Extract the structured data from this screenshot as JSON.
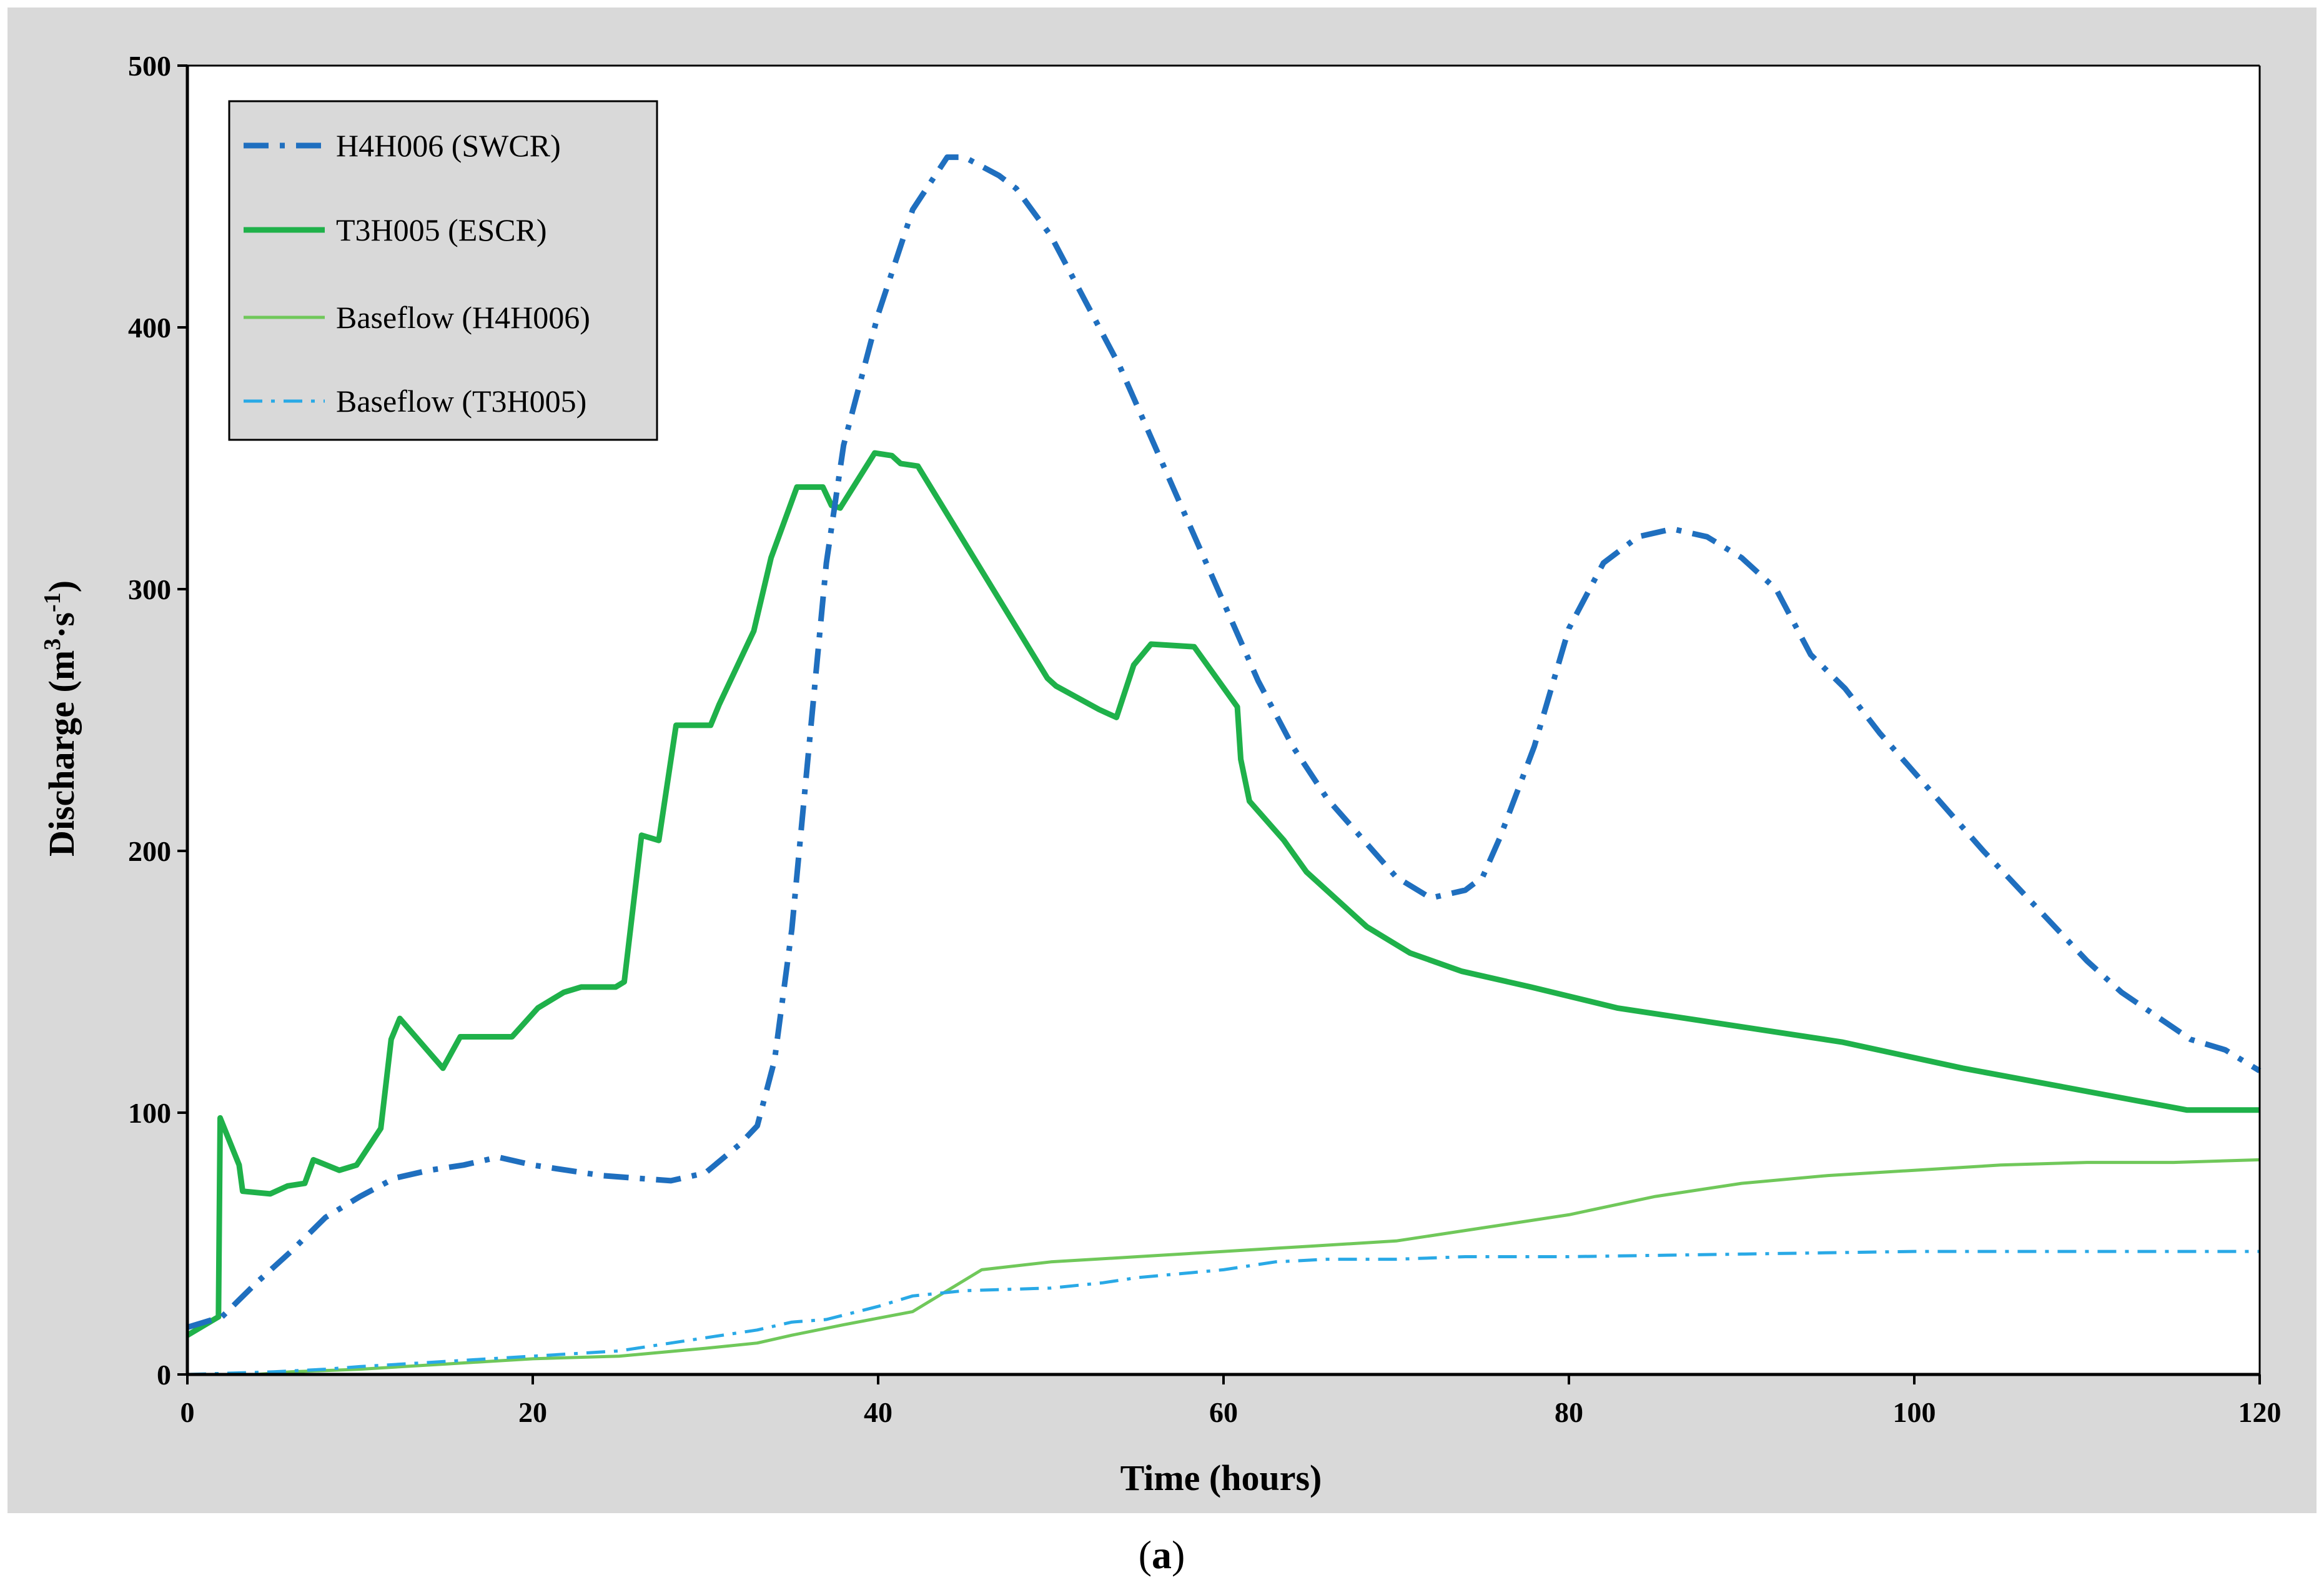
{
  "chart_data": {
    "type": "line",
    "title": "",
    "xlabel": "Time (hours)",
    "ylabel_main": "Discharge (m",
    "ylabel_sup1": "3",
    "ylabel_mid": "·s",
    "ylabel_sup2": "-1",
    "ylabel_end": ")",
    "xlim": [
      0,
      120
    ],
    "ylim": [
      0,
      500
    ],
    "x_ticks": [
      "0",
      "20",
      "40",
      "60",
      "80",
      "100",
      "120"
    ],
    "y_ticks": [
      "0",
      "100",
      "200",
      "300",
      "400",
      "500"
    ],
    "caption_open": "(",
    "caption_letter": "a",
    "caption_close": ")",
    "legend_position": "top-left",
    "series": [
      {
        "name": "H4H006 (SWCR)",
        "color": "#1f6fbf",
        "style": "dash-dot-thick",
        "points": [
          [
            0,
            18
          ],
          [
            2,
            22
          ],
          [
            4,
            35
          ],
          [
            6,
            47
          ],
          [
            8,
            60
          ],
          [
            10,
            68
          ],
          [
            12,
            75
          ],
          [
            14,
            78
          ],
          [
            16,
            80
          ],
          [
            18,
            83
          ],
          [
            20,
            80
          ],
          [
            22,
            78
          ],
          [
            24,
            76
          ],
          [
            26,
            75
          ],
          [
            28,
            74
          ],
          [
            30,
            77
          ],
          [
            32,
            88
          ],
          [
            33,
            95
          ],
          [
            34,
            120
          ],
          [
            35,
            170
          ],
          [
            36,
            240
          ],
          [
            37,
            310
          ],
          [
            38,
            355
          ],
          [
            39,
            380
          ],
          [
            40,
            405
          ],
          [
            42,
            445
          ],
          [
            44,
            465
          ],
          [
            45,
            465
          ],
          [
            47,
            458
          ],
          [
            48,
            453
          ],
          [
            50,
            435
          ],
          [
            52,
            410
          ],
          [
            54,
            385
          ],
          [
            56,
            355
          ],
          [
            58,
            325
          ],
          [
            60,
            295
          ],
          [
            62,
            265
          ],
          [
            64,
            240
          ],
          [
            66,
            220
          ],
          [
            68,
            205
          ],
          [
            70,
            190
          ],
          [
            72,
            182
          ],
          [
            74,
            185
          ],
          [
            75,
            190
          ],
          [
            76,
            205
          ],
          [
            78,
            240
          ],
          [
            80,
            285
          ],
          [
            82,
            310
          ],
          [
            84,
            320
          ],
          [
            86,
            323
          ],
          [
            88,
            320
          ],
          [
            90,
            312
          ],
          [
            92,
            300
          ],
          [
            94,
            275
          ],
          [
            96,
            262
          ],
          [
            98,
            245
          ],
          [
            100,
            230
          ],
          [
            102,
            215
          ],
          [
            104,
            200
          ],
          [
            106,
            186
          ],
          [
            108,
            172
          ],
          [
            110,
            158
          ],
          [
            112,
            146
          ],
          [
            114,
            137
          ],
          [
            116,
            128
          ],
          [
            118,
            124
          ],
          [
            120,
            116
          ]
        ]
      },
      {
        "name": "T3H005 (ESCR)",
        "color": "#1fb14a",
        "style": "solid-thick",
        "points": [
          [
            0,
            15
          ],
          [
            1.8,
            22
          ],
          [
            1.9,
            98
          ],
          [
            3,
            80
          ],
          [
            3.2,
            70
          ],
          [
            4.8,
            69
          ],
          [
            5.8,
            72
          ],
          [
            6.8,
            73
          ],
          [
            7.3,
            82
          ],
          [
            8.8,
            78
          ],
          [
            9.8,
            80
          ],
          [
            11.2,
            94
          ],
          [
            11.8,
            128
          ],
          [
            12.3,
            136
          ],
          [
            14.8,
            117
          ],
          [
            15.8,
            129
          ],
          [
            18.8,
            129
          ],
          [
            20.3,
            140
          ],
          [
            21.8,
            146
          ],
          [
            22.8,
            148
          ],
          [
            24.8,
            148
          ],
          [
            25.3,
            150
          ],
          [
            26.3,
            206
          ],
          [
            27.3,
            204
          ],
          [
            28.3,
            248
          ],
          [
            30.3,
            248
          ],
          [
            30.8,
            256
          ],
          [
            32.8,
            284
          ],
          [
            33.8,
            312
          ],
          [
            35.3,
            339
          ],
          [
            36.8,
            339
          ],
          [
            37.3,
            332
          ],
          [
            37.8,
            331
          ],
          [
            39.8,
            352
          ],
          [
            40.8,
            351
          ],
          [
            41.3,
            348
          ],
          [
            42.3,
            347
          ],
          [
            44.8,
            320
          ],
          [
            47.3,
            293
          ],
          [
            49.8,
            266
          ],
          [
            50.3,
            263
          ],
          [
            52.8,
            254
          ],
          [
            53.8,
            251
          ],
          [
            54.8,
            271
          ],
          [
            55.8,
            279
          ],
          [
            58.3,
            278
          ],
          [
            60.8,
            255
          ],
          [
            61,
            235
          ],
          [
            61.5,
            219
          ],
          [
            63.5,
            204
          ],
          [
            64.8,
            192
          ],
          [
            68.3,
            171
          ],
          [
            70.8,
            161
          ],
          [
            73.8,
            154
          ],
          [
            77.8,
            148
          ],
          [
            82.8,
            140
          ],
          [
            87.8,
            135
          ],
          [
            95.8,
            127
          ],
          [
            102.8,
            117
          ],
          [
            115.8,
            101
          ],
          [
            120,
            101
          ]
        ]
      },
      {
        "name": "Baseflow (H4H006)",
        "color": "#70c85a",
        "style": "solid-thin",
        "points": [
          [
            0,
            0
          ],
          [
            4,
            0
          ],
          [
            6,
            1
          ],
          [
            10,
            2
          ],
          [
            15,
            4
          ],
          [
            20,
            6
          ],
          [
            25,
            7
          ],
          [
            30,
            10
          ],
          [
            33,
            12
          ],
          [
            35,
            15
          ],
          [
            38,
            19
          ],
          [
            42,
            24
          ],
          [
            44,
            32
          ],
          [
            46,
            40
          ],
          [
            50,
            43
          ],
          [
            55,
            45
          ],
          [
            60,
            47
          ],
          [
            65,
            49
          ],
          [
            70,
            51
          ],
          [
            75,
            56
          ],
          [
            80,
            61
          ],
          [
            85,
            68
          ],
          [
            90,
            73
          ],
          [
            95,
            76
          ],
          [
            100,
            78
          ],
          [
            105,
            80
          ],
          [
            110,
            81
          ],
          [
            115,
            81
          ],
          [
            120,
            82
          ]
        ]
      },
      {
        "name": "Baseflow (T3H005)",
        "color": "#29a9e6",
        "style": "dash-dot-thin",
        "points": [
          [
            0,
            0
          ],
          [
            5,
            1
          ],
          [
            8,
            2
          ],
          [
            10,
            3
          ],
          [
            15,
            5
          ],
          [
            20,
            7
          ],
          [
            25,
            9
          ],
          [
            30,
            14
          ],
          [
            33,
            17
          ],
          [
            35,
            20
          ],
          [
            37,
            21
          ],
          [
            40,
            26
          ],
          [
            42,
            30
          ],
          [
            45,
            32
          ],
          [
            50,
            33
          ],
          [
            53,
            35
          ],
          [
            55,
            37
          ],
          [
            60,
            40
          ],
          [
            63,
            43
          ],
          [
            66,
            44
          ],
          [
            70,
            44
          ],
          [
            74,
            45
          ],
          [
            80,
            45
          ],
          [
            90,
            46
          ],
          [
            100,
            47
          ],
          [
            110,
            47
          ],
          [
            120,
            47
          ]
        ]
      }
    ]
  }
}
